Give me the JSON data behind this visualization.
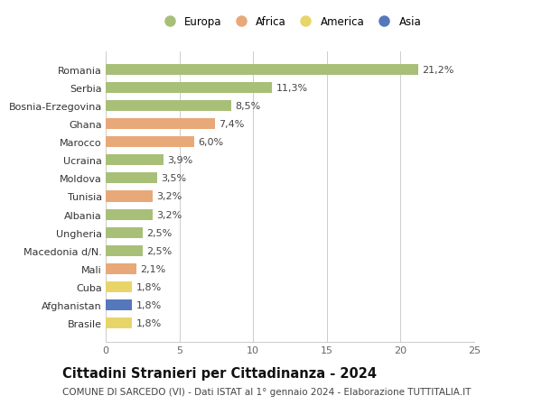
{
  "categories": [
    "Brasile",
    "Afghanistan",
    "Cuba",
    "Mali",
    "Macedonia d/N.",
    "Ungheria",
    "Albania",
    "Tunisia",
    "Moldova",
    "Ucraina",
    "Marocco",
    "Ghana",
    "Bosnia-Erzegovina",
    "Serbia",
    "Romania"
  ],
  "values": [
    1.8,
    1.8,
    1.8,
    2.1,
    2.5,
    2.5,
    3.2,
    3.2,
    3.5,
    3.9,
    6.0,
    7.4,
    8.5,
    11.3,
    21.2
  ],
  "labels": [
    "1,8%",
    "1,8%",
    "1,8%",
    "2,1%",
    "2,5%",
    "2,5%",
    "3,2%",
    "3,2%",
    "3,5%",
    "3,9%",
    "6,0%",
    "7,4%",
    "8,5%",
    "11,3%",
    "21,2%"
  ],
  "colors": [
    "#e8d56a",
    "#5577bb",
    "#e8d56a",
    "#e8a878",
    "#a8bf78",
    "#a8bf78",
    "#a8bf78",
    "#e8a878",
    "#a8bf78",
    "#a8bf78",
    "#e8a878",
    "#e8a878",
    "#a8bf78",
    "#a8bf78",
    "#a8bf78"
  ],
  "legend_labels": [
    "Europa",
    "Africa",
    "America",
    "Asia"
  ],
  "legend_colors": [
    "#a8bf78",
    "#e8a878",
    "#e8d56a",
    "#5577bb"
  ],
  "xlim": [
    0,
    25
  ],
  "xticks": [
    0,
    5,
    10,
    15,
    20,
    25
  ],
  "title": "Cittadini Stranieri per Cittadinanza - 2024",
  "subtitle": "COMUNE DI SARCEDO (VI) - Dati ISTAT al 1° gennaio 2024 - Elaborazione TUTTITALIA.IT",
  "background_color": "#ffffff",
  "bar_height": 0.6,
  "grid_color": "#cccccc",
  "label_fontsize": 8,
  "ytick_fontsize": 8,
  "xtick_fontsize": 8,
  "title_fontsize": 10.5,
  "subtitle_fontsize": 7.5,
  "legend_fontsize": 8.5
}
